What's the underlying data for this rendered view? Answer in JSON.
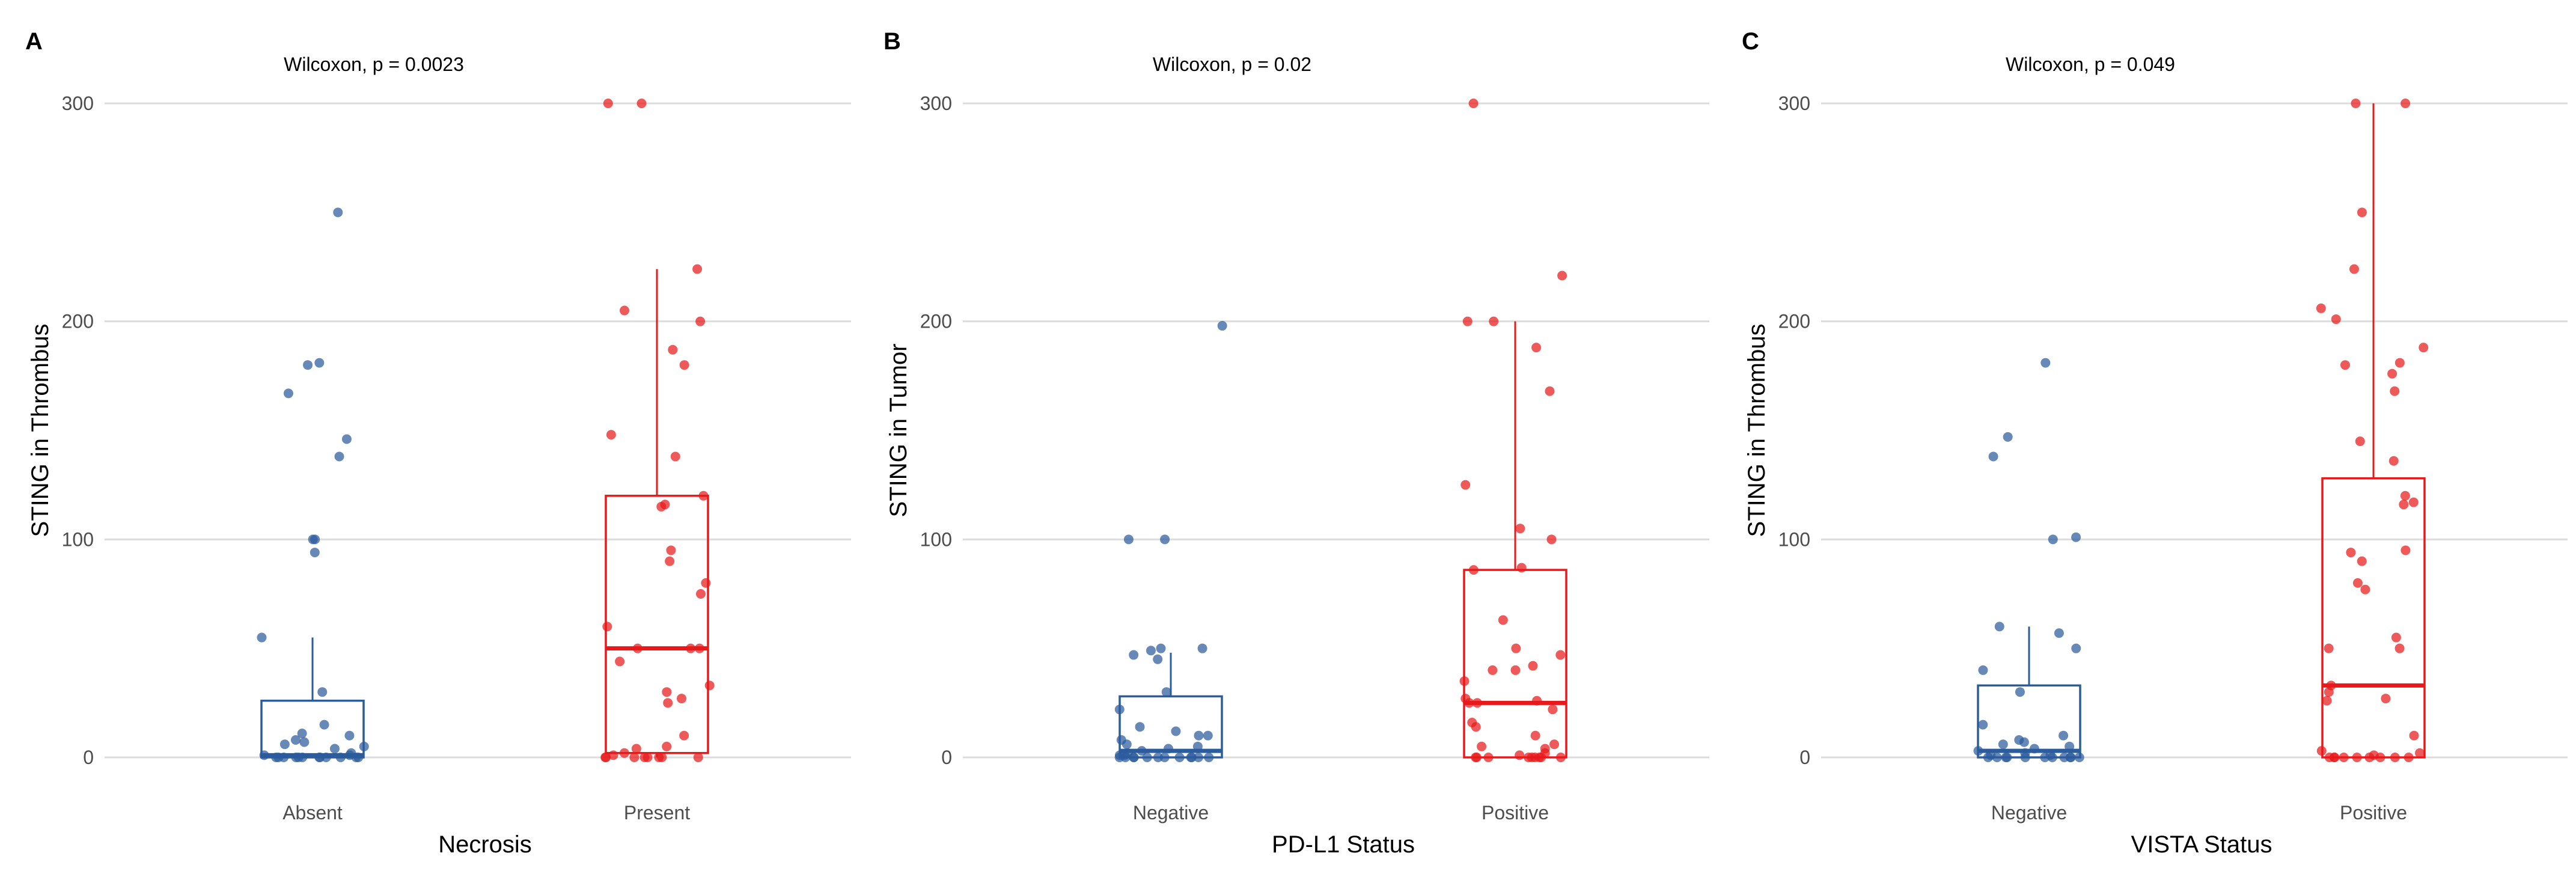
{
  "chart_data": [
    {
      "type": "boxplot",
      "panel_label": "A",
      "stat_label": "Wilcoxon, p = 0.0023",
      "xlabel": "Necrosis",
      "ylabel": "STING in Thrombus",
      "ylim": [
        0,
        300
      ],
      "yticks": [
        0,
        100,
        200,
        300
      ],
      "grid": true,
      "groups": [
        {
          "name": "Absent",
          "color": "#2b5c9c",
          "box": {
            "min": 0,
            "q1": 0,
            "median": 1,
            "q3": 26,
            "max": 55
          },
          "points": [
            250,
            181,
            180,
            167,
            146,
            138,
            100,
            100,
            94,
            55,
            30,
            15,
            11,
            10,
            8,
            7,
            6,
            5,
            4,
            2,
            1,
            1,
            0,
            0,
            0,
            0,
            0,
            0,
            0,
            0,
            0,
            0,
            0,
            0
          ]
        },
        {
          "name": "Present",
          "color": "#e8191a",
          "box": {
            "min": 0,
            "q1": 2,
            "median": 50,
            "q3": 120,
            "max": 224
          },
          "points": [
            300,
            300,
            224,
            205,
            200,
            187,
            180,
            148,
            138,
            120,
            116,
            115,
            95,
            90,
            80,
            75,
            60,
            50,
            50,
            50,
            44,
            33,
            30,
            27,
            25,
            10,
            5,
            4,
            2,
            1,
            0,
            0,
            0,
            0,
            0,
            0,
            0,
            0
          ]
        }
      ]
    },
    {
      "type": "boxplot",
      "panel_label": "B",
      "stat_label": "Wilcoxon, p = 0.02",
      "xlabel": "PD-L1 Status",
      "ylabel": "STING in Tumor",
      "ylim": [
        0,
        300
      ],
      "yticks": [
        0,
        100,
        200,
        300
      ],
      "grid": true,
      "groups": [
        {
          "name": "Negative",
          "color": "#2b5c9c",
          "box": {
            "min": 0,
            "q1": 0,
            "median": 3,
            "q3": 28,
            "max": 48
          },
          "points": [
            198,
            100,
            100,
            50,
            50,
            49,
            47,
            45,
            30,
            22,
            14,
            12,
            10,
            10,
            8,
            6,
            5,
            4,
            3,
            2,
            1,
            1,
            0,
            0,
            0,
            0,
            0,
            0,
            0,
            0,
            0,
            0,
            0,
            0
          ]
        },
        {
          "name": "Positive",
          "color": "#e8191a",
          "box": {
            "min": 0,
            "q1": 0,
            "median": 25,
            "q3": 86,
            "max": 200
          },
          "points": [
            300,
            221,
            200,
            200,
            188,
            168,
            125,
            105,
            100,
            87,
            86,
            63,
            50,
            47,
            42,
            40,
            40,
            35,
            27,
            26,
            25,
            25,
            22,
            16,
            14,
            10,
            6,
            5,
            4,
            2,
            1,
            0,
            0,
            0,
            0,
            0,
            0,
            0,
            0,
            0
          ]
        }
      ]
    },
    {
      "type": "boxplot",
      "panel_label": "C",
      "stat_label": "Wilcoxon, p = 0.049",
      "xlabel": "VISTA Status",
      "ylabel": "STING in Thrombus",
      "ylim": [
        0,
        300
      ],
      "yticks": [
        0,
        100,
        200,
        300
      ],
      "grid": true,
      "groups": [
        {
          "name": "Negative",
          "color": "#2b5c9c",
          "box": {
            "min": 0,
            "q1": 0,
            "median": 3,
            "q3": 33,
            "max": 60
          },
          "points": [
            181,
            147,
            138,
            101,
            100,
            60,
            57,
            50,
            40,
            30,
            15,
            10,
            8,
            7,
            6,
            5,
            4,
            3,
            2,
            1,
            1,
            0,
            0,
            0,
            0,
            0,
            0,
            0,
            0,
            0,
            0,
            0
          ]
        },
        {
          "name": "Positive",
          "color": "#e8191a",
          "box": {
            "min": 0,
            "q1": 0,
            "median": 33,
            "q3": 128,
            "max": 300
          },
          "points": [
            300,
            300,
            250,
            224,
            206,
            201,
            188,
            181,
            180,
            176,
            168,
            145,
            136,
            120,
            117,
            116,
            95,
            94,
            90,
            80,
            77,
            55,
            50,
            50,
            33,
            30,
            27,
            26,
            10,
            3,
            2,
            1,
            0,
            0,
            0,
            0,
            0,
            0,
            0,
            0,
            0
          ]
        }
      ]
    }
  ]
}
